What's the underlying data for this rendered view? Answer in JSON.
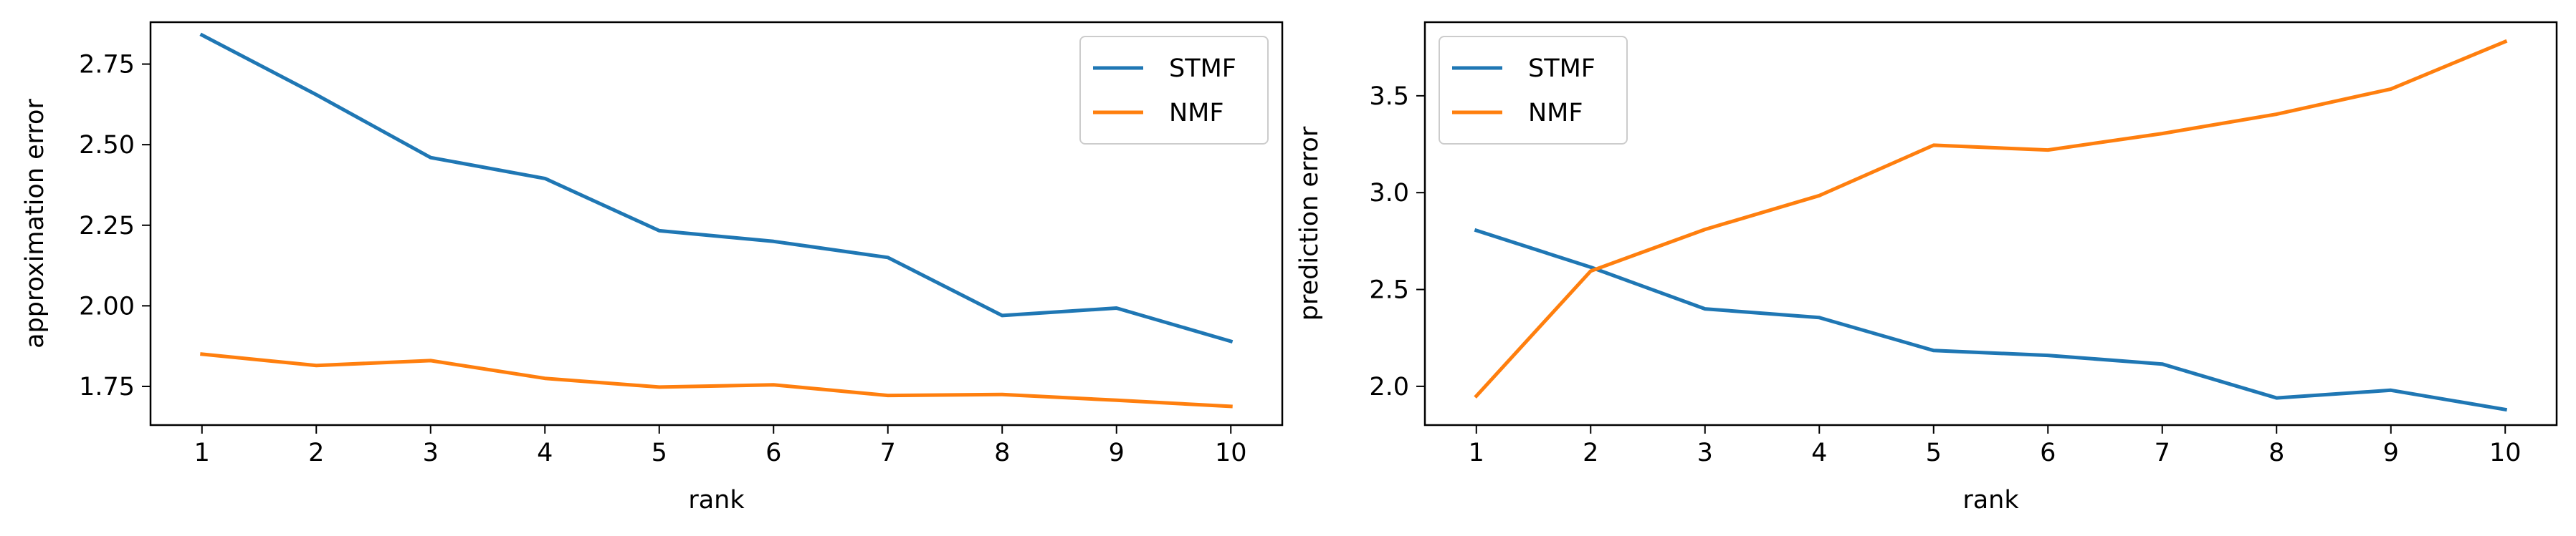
{
  "chart_data": [
    {
      "type": "line",
      "title": "",
      "xlabel": "rank",
      "ylabel": "approximation error",
      "x": [
        1,
        2,
        3,
        4,
        5,
        6,
        7,
        8,
        9,
        10
      ],
      "xlim": [
        0.55,
        10.45
      ],
      "ylim": [
        1.63,
        2.88
      ],
      "xticks": [
        1,
        2,
        3,
        4,
        5,
        6,
        7,
        8,
        9,
        10
      ],
      "yticks": [
        1.75,
        2.0,
        2.25,
        2.5,
        2.75
      ],
      "ytick_labels": [
        "1.75",
        "2.00",
        "2.25",
        "2.50",
        "2.75"
      ],
      "grid": false,
      "legend_position": "top-right",
      "series": [
        {
          "name": "STMF",
          "color": "#1f77b4",
          "values": [
            2.84,
            2.655,
            2.46,
            2.395,
            2.233,
            2.2,
            2.15,
            1.97,
            1.993,
            1.89
          ]
        },
        {
          "name": "NMF",
          "color": "#ff7f0e",
          "values": [
            1.85,
            1.815,
            1.83,
            1.775,
            1.748,
            1.755,
            1.722,
            1.725,
            1.707,
            1.688
          ]
        }
      ]
    },
    {
      "type": "line",
      "title": "",
      "xlabel": "rank",
      "ylabel": "prediction error",
      "x": [
        1,
        2,
        3,
        4,
        5,
        6,
        7,
        8,
        9,
        10
      ],
      "xlim": [
        0.55,
        10.45
      ],
      "ylim": [
        1.8,
        3.88
      ],
      "xticks": [
        1,
        2,
        3,
        4,
        5,
        6,
        7,
        8,
        9,
        10
      ],
      "yticks": [
        2.0,
        2.5,
        3.0,
        3.5
      ],
      "ytick_labels": [
        "2.0",
        "2.5",
        "3.0",
        "3.5"
      ],
      "grid": false,
      "legend_position": "top-left",
      "series": [
        {
          "name": "STMF",
          "color": "#1f77b4",
          "values": [
            2.805,
            2.615,
            2.4,
            2.355,
            2.185,
            2.16,
            2.115,
            1.94,
            1.98,
            1.88
          ]
        },
        {
          "name": "NMF",
          "color": "#ff7f0e",
          "values": [
            1.95,
            2.595,
            2.81,
            2.985,
            3.245,
            3.22,
            3.305,
            3.405,
            3.535,
            3.78
          ]
        }
      ]
    }
  ]
}
